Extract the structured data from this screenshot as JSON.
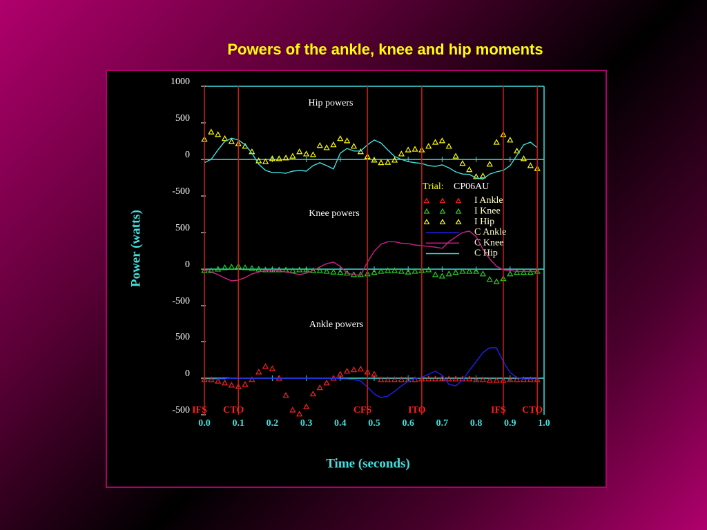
{
  "title": "Powers of the ankle, knee and hip moments",
  "trial": {
    "label": "Trial:",
    "value": "CP06AU"
  },
  "chart_data": [
    {
      "type": "line",
      "title": "Hip powers",
      "x": [
        0,
        0.02,
        0.04,
        0.06,
        0.08,
        0.1,
        0.12,
        0.14,
        0.16,
        0.18,
        0.2,
        0.22,
        0.24,
        0.26,
        0.28,
        0.3,
        0.32,
        0.34,
        0.36,
        0.38,
        0.4,
        0.42,
        0.44,
        0.46,
        0.48,
        0.5,
        0.52,
        0.54,
        0.56,
        0.58,
        0.6,
        0.62,
        0.64,
        0.66,
        0.68,
        0.7,
        0.72,
        0.74,
        0.76,
        0.78,
        0.8,
        0.82,
        0.84,
        0.86,
        0.88,
        0.9,
        0.92,
        0.94,
        0.96,
        0.98
      ],
      "xlim": [
        0,
        1
      ],
      "ylim": [
        -500,
        1000
      ],
      "yticks": [
        -500,
        0,
        500,
        1000
      ],
      "series": [
        {
          "name": "I Hip",
          "color": "#ffff00",
          "style": "markers",
          "values": [
            275,
            375,
            340,
            285,
            245,
            215,
            180,
            105,
            -20,
            -30,
            10,
            10,
            20,
            45,
            105,
            75,
            65,
            190,
            160,
            200,
            285,
            255,
            180,
            105,
            40,
            -10,
            -45,
            -40,
            -10,
            75,
            130,
            140,
            130,
            180,
            235,
            255,
            180,
            45,
            -55,
            -140,
            -235,
            -225,
            -65,
            235,
            340,
            265,
            115,
            10,
            -85,
            -125
          ]
        },
        {
          "name": "C Hip",
          "color": "#40e0e0",
          "style": "line",
          "values": [
            -45,
            0,
            130,
            245,
            290,
            265,
            200,
            85,
            -65,
            -150,
            -180,
            -180,
            -190,
            -160,
            -150,
            -160,
            -85,
            -45,
            -85,
            -130,
            85,
            150,
            115,
            115,
            200,
            265,
            225,
            130,
            40,
            0,
            -30,
            -45,
            -55,
            -85,
            -95,
            -75,
            -115,
            -170,
            -200,
            -205,
            -255,
            -270,
            -200,
            -170,
            -150,
            -85,
            55,
            200,
            235,
            160
          ]
        }
      ]
    },
    {
      "type": "line",
      "title": "Knee powers",
      "ylabel": "Power (watts)",
      "x": [
        0,
        0.02,
        0.04,
        0.06,
        0.08,
        0.1,
        0.12,
        0.14,
        0.16,
        0.18,
        0.2,
        0.22,
        0.24,
        0.26,
        0.28,
        0.3,
        0.32,
        0.34,
        0.36,
        0.38,
        0.4,
        0.42,
        0.44,
        0.46,
        0.48,
        0.5,
        0.52,
        0.54,
        0.56,
        0.58,
        0.6,
        0.62,
        0.64,
        0.66,
        0.68,
        0.7,
        0.72,
        0.74,
        0.76,
        0.78,
        0.8,
        0.82,
        0.84,
        0.86,
        0.88,
        0.9,
        0.92,
        0.94,
        0.96,
        0.98
      ],
      "xlim": [
        0,
        1
      ],
      "ylim": [
        -500,
        500
      ],
      "yticks": [
        -500,
        0,
        500
      ],
      "series": [
        {
          "name": "I Knee",
          "color": "#20d020",
          "style": "markers",
          "values": [
            -20,
            -20,
            0,
            20,
            30,
            40,
            20,
            10,
            0,
            -10,
            -10,
            -10,
            -10,
            -20,
            -10,
            -10,
            -20,
            -20,
            -30,
            -40,
            -45,
            -55,
            -75,
            -75,
            -65,
            -45,
            -30,
            -20,
            -20,
            -30,
            -40,
            -30,
            -20,
            -10,
            -75,
            -95,
            -65,
            -45,
            -30,
            -30,
            -30,
            -65,
            -140,
            -170,
            -130,
            -65,
            -45,
            -45,
            -45,
            -30
          ]
        },
        {
          "name": "C Knee",
          "color": "#d0208a",
          "style": "line",
          "values": [
            -10,
            -40,
            -75,
            -120,
            -160,
            -150,
            -115,
            -65,
            -40,
            -20,
            -10,
            -20,
            -40,
            -55,
            -75,
            -55,
            -20,
            30,
            75,
            95,
            40,
            -55,
            -75,
            -85,
            95,
            245,
            340,
            375,
            375,
            355,
            350,
            330,
            320,
            310,
            300,
            285,
            375,
            440,
            500,
            520,
            445,
            275,
            140,
            40,
            -10,
            -20,
            -30,
            -30,
            -30,
            -30
          ]
        }
      ]
    },
    {
      "type": "line",
      "title": "Ankle powers",
      "xlabel": "Time (seconds)",
      "x": [
        0,
        0.02,
        0.04,
        0.06,
        0.08,
        0.1,
        0.12,
        0.14,
        0.16,
        0.18,
        0.2,
        0.22,
        0.24,
        0.26,
        0.28,
        0.3,
        0.32,
        0.34,
        0.36,
        0.38,
        0.4,
        0.42,
        0.44,
        0.46,
        0.48,
        0.5,
        0.52,
        0.54,
        0.56,
        0.58,
        0.6,
        0.62,
        0.64,
        0.66,
        0.68,
        0.7,
        0.72,
        0.74,
        0.76,
        0.78,
        0.8,
        0.82,
        0.84,
        0.86,
        0.88,
        0.9,
        0.92,
        0.94,
        0.96,
        0.98
      ],
      "xlim": [
        0,
        1
      ],
      "xticks": [
        {
          "value": 0,
          "label": "0.0"
        },
        0.1,
        0.2,
        0.3,
        0.4,
        0.5,
        0.6,
        0.7,
        0.8,
        0.9,
        {
          "value": 1,
          "label": "1.0"
        }
      ],
      "ylim": [
        -500,
        500
      ],
      "yticks": [
        -500,
        0,
        500
      ],
      "events": [
        {
          "label": "IFS",
          "x": 0
        },
        {
          "label": "CTO",
          "x": 0.1
        },
        {
          "label": "CFS",
          "x": 0.48
        },
        {
          "label": "ITO",
          "x": 0.64
        },
        {
          "label": "IFS",
          "x": 0.88
        },
        {
          "label": "CTO",
          "x": 0.98
        }
      ],
      "series": [
        {
          "name": "I Ankle",
          "color": "#ff2020",
          "style": "markers",
          "values": [
            -20,
            -20,
            -40,
            -65,
            -95,
            -115,
            -85,
            -20,
            85,
            160,
            130,
            0,
            -235,
            -435,
            -490,
            -390,
            -215,
            -130,
            -65,
            0,
            55,
            95,
            115,
            125,
            85,
            55,
            -20,
            -20,
            -20,
            -20,
            -20,
            -20,
            -10,
            -10,
            -10,
            -10,
            -10,
            -10,
            -10,
            -10,
            -20,
            -20,
            -30,
            -30,
            -30,
            -20,
            -20,
            -20,
            -20,
            -20
          ]
        },
        {
          "name": "C Ankle",
          "color": "#2020f0",
          "style": "line",
          "values": [
            -20,
            -20,
            -10,
            -10,
            0,
            0,
            0,
            0,
            0,
            0,
            0,
            0,
            0,
            0,
            0,
            0,
            0,
            0,
            0,
            0,
            -10,
            -10,
            -20,
            -40,
            -120,
            -215,
            -265,
            -245,
            -180,
            -105,
            -45,
            0,
            10,
            55,
            95,
            40,
            -85,
            -105,
            -30,
            105,
            225,
            350,
            415,
            415,
            225,
            75,
            10,
            -10,
            -10,
            -10
          ]
        }
      ]
    }
  ]
}
